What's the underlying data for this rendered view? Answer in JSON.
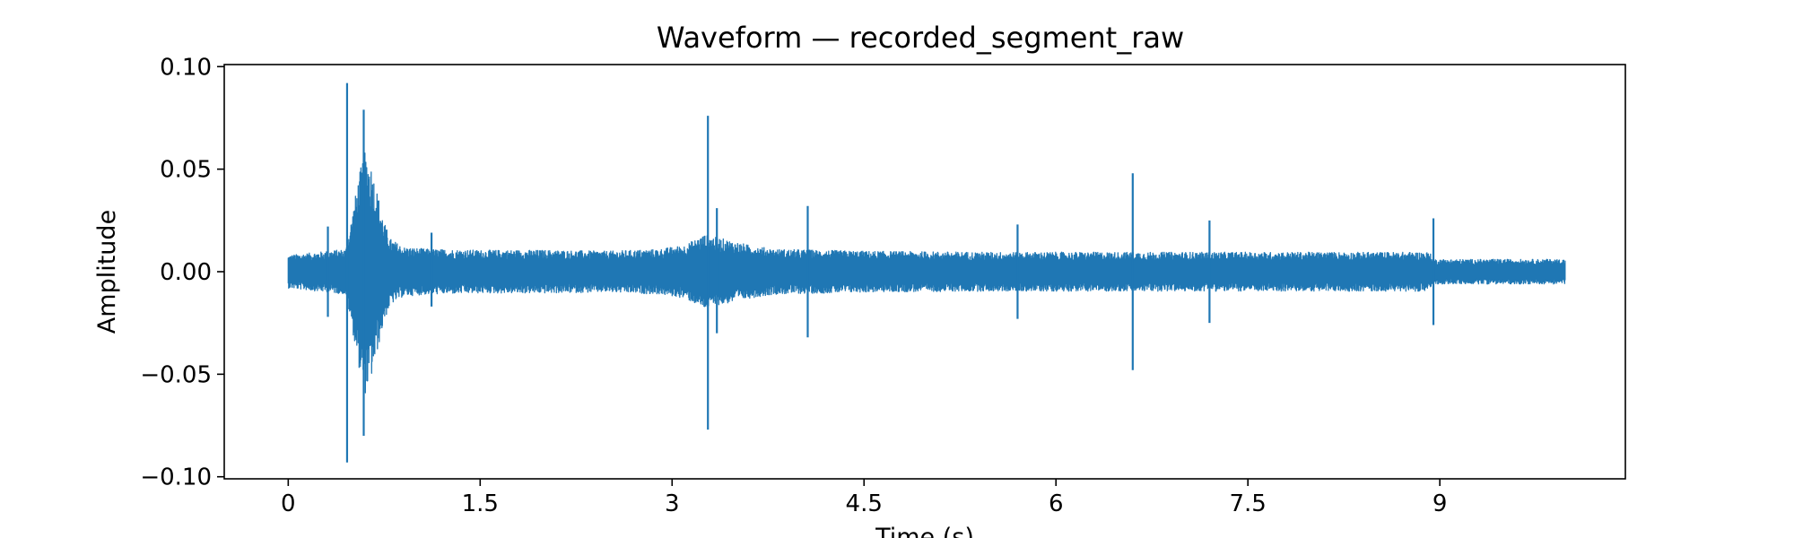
{
  "chart_data": {
    "type": "line",
    "title": "Waveform — recorded_segment_raw",
    "xlabel": "Time (s)",
    "ylabel": "Amplitude",
    "xlim": [
      -0.5,
      10.45
    ],
    "ylim": [
      -0.101,
      0.101
    ],
    "x_ticks": [
      0,
      1.5,
      3,
      4.5,
      6,
      7.5,
      9
    ],
    "x_tick_labels": [
      "0",
      "1.5",
      "3",
      "4.5",
      "6",
      "7.5",
      "9"
    ],
    "y_ticks": [
      0.1,
      0.05,
      0.0,
      -0.05,
      -0.1
    ],
    "y_tick_labels": [
      "0.10",
      "0.05",
      "0.00",
      "−0.05",
      "−0.10"
    ],
    "grid": false,
    "legend": null,
    "series": [
      {
        "color": "#1f77b4",
        "duration_s": 9.98,
        "envelope": [
          [
            0.0,
            0.008
          ],
          [
            0.3,
            0.01
          ],
          [
            0.45,
            0.011
          ],
          [
            0.5,
            0.028
          ],
          [
            0.55,
            0.046
          ],
          [
            0.6,
            0.06
          ],
          [
            0.65,
            0.052
          ],
          [
            0.7,
            0.038
          ],
          [
            0.75,
            0.024
          ],
          [
            0.8,
            0.016
          ],
          [
            0.9,
            0.012
          ],
          [
            1.1,
            0.011
          ],
          [
            1.5,
            0.0105
          ],
          [
            2.0,
            0.0105
          ],
          [
            2.5,
            0.01
          ],
          [
            2.9,
            0.011
          ],
          [
            3.1,
            0.013
          ],
          [
            3.25,
            0.018
          ],
          [
            3.4,
            0.016
          ],
          [
            3.6,
            0.013
          ],
          [
            3.8,
            0.011
          ],
          [
            4.5,
            0.01
          ],
          [
            5.5,
            0.0095
          ],
          [
            6.5,
            0.0095
          ],
          [
            7.5,
            0.0095
          ],
          [
            8.5,
            0.0095
          ],
          [
            8.92,
            0.0095
          ],
          [
            8.95,
            0.006
          ],
          [
            9.98,
            0.006
          ]
        ],
        "spikes": [
          {
            "t": 0.31,
            "max": 0.022,
            "min": -0.022
          },
          {
            "t": 0.46,
            "max": 0.092,
            "min": -0.093
          },
          {
            "t": 0.59,
            "max": 0.079,
            "min": -0.08
          },
          {
            "t": 1.12,
            "max": 0.019,
            "min": -0.017
          },
          {
            "t": 3.28,
            "max": 0.076,
            "min": -0.077
          },
          {
            "t": 3.35,
            "max": 0.031,
            "min": -0.03
          },
          {
            "t": 4.06,
            "max": 0.032,
            "min": -0.032
          },
          {
            "t": 5.7,
            "max": 0.023,
            "min": -0.023
          },
          {
            "t": 6.6,
            "max": 0.048,
            "min": -0.048
          },
          {
            "t": 7.2,
            "max": 0.025,
            "min": -0.025
          },
          {
            "t": 8.95,
            "max": 0.026,
            "min": -0.026
          }
        ]
      }
    ]
  }
}
